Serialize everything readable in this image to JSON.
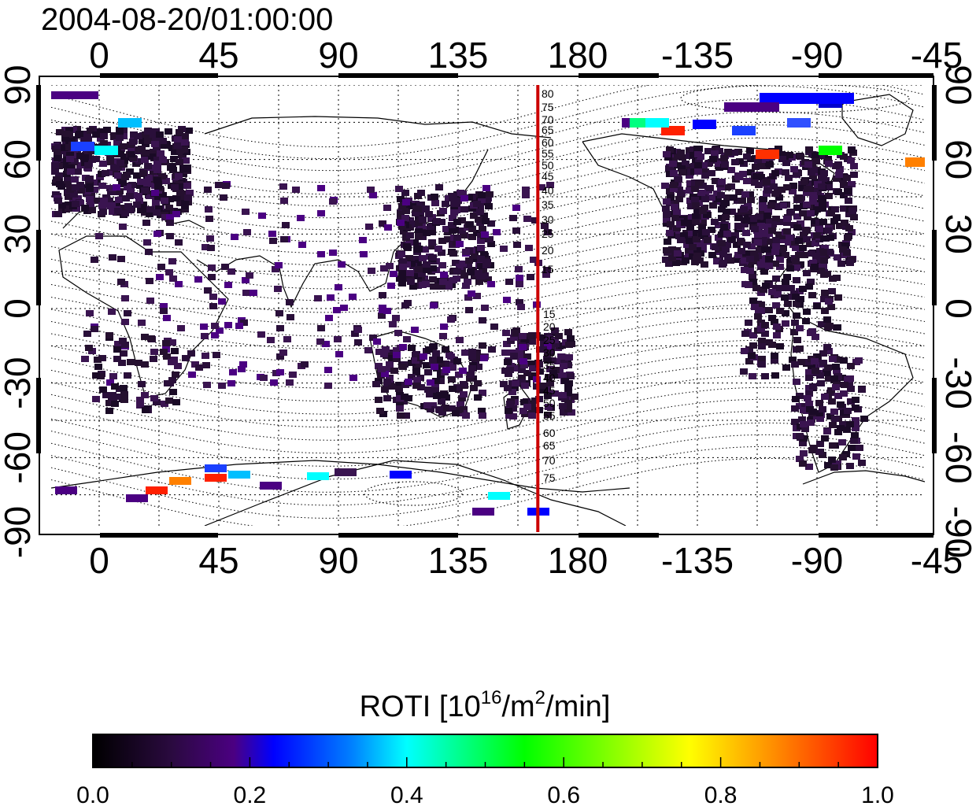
{
  "timestamp": "2004-08-20/01:00:00",
  "map": {
    "lon_ticks": [
      "0",
      "45",
      "90",
      "135",
      "180",
      "-135",
      "-90",
      "-45"
    ],
    "lat_ticks_left": [
      "90",
      "60",
      "30",
      "0",
      "-30",
      "-60",
      "-90"
    ],
    "lat_ticks_right": [
      "90",
      "60",
      "30",
      "0",
      "-30",
      "-60",
      "-90"
    ],
    "meridian_line": {
      "lon": 165,
      "color": "#cc0000"
    },
    "contour_labels_north": [
      "80",
      "75",
      "70",
      "65",
      "60",
      "55",
      "50",
      "45",
      "40",
      "35",
      "30",
      "25",
      "20",
      "15"
    ],
    "contour_labels_south": [
      "15",
      "20",
      "25",
      "30",
      "35",
      "40",
      "45",
      "50",
      "55",
      "60",
      "65",
      "70",
      "75"
    ]
  },
  "colorbar": {
    "title_main": "ROTI  [10",
    "title_sup1": "16",
    "title_mid": "/m",
    "title_sup2": "2",
    "title_end": "/min]",
    "tick_labels": [
      "0.0",
      "0.2",
      "0.4",
      "0.6",
      "0.8",
      "1.0"
    ],
    "colormap": [
      "#000000",
      "#3a0a5e",
      "#4b0082",
      "#0000ff",
      "#00bfff",
      "#00ffff",
      "#00ff00",
      "#ffff00",
      "#ff8000",
      "#ff0000"
    ]
  }
}
